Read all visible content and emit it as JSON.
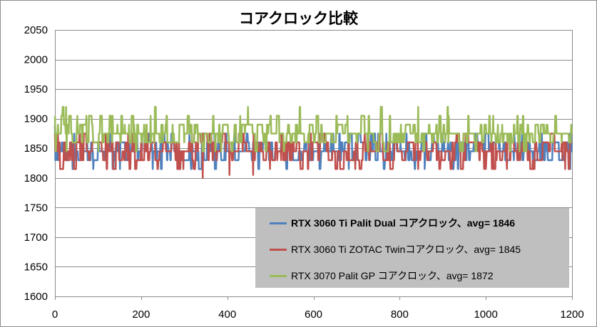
{
  "chart_data": {
    "type": "line",
    "title": "コアクロック比較",
    "xlabel": "",
    "ylabel": "",
    "xlim": [
      0,
      1200
    ],
    "ylim": [
      1600,
      2050
    ],
    "x_ticks": [
      0,
      200,
      400,
      600,
      800,
      1000,
      1200
    ],
    "y_ticks": [
      1600,
      1650,
      1700,
      1750,
      1800,
      1850,
      1900,
      1950,
      2000,
      2050
    ],
    "grid": true,
    "legend_position": "bottom-right",
    "series": [
      {
        "name": "RTX 3060 Ti Palit Dual コアクロック、avg= 1846",
        "color": "#4f81bd",
        "bold": true,
        "levels": [
          1815,
          1830,
          1845,
          1860,
          1875
        ],
        "weights": [
          0.06,
          0.24,
          0.33,
          0.27,
          0.1
        ],
        "start": 1890,
        "seed": 11
      },
      {
        "name": "RTX 3060 Ti ZOTAC Twinコアクロック、avg= 1845",
        "color": "#c0504d",
        "bold": false,
        "levels": [
          1815,
          1830,
          1845,
          1860,
          1875
        ],
        "weights": [
          0.07,
          0.24,
          0.31,
          0.28,
          0.1
        ],
        "start": 1875,
        "seed": 23,
        "dips": [
          [
            343,
            1800
          ],
          [
            405,
            1805
          ],
          [
            460,
            1805
          ]
        ]
      },
      {
        "name": "RTX 3070 Palit GP コアクロック、avg= 1872",
        "color": "#9bbb59",
        "bold": false,
        "levels": [
          1845,
          1860,
          1875,
          1890,
          1905,
          1920
        ],
        "weights": [
          0.05,
          0.28,
          0.42,
          0.15,
          0.08,
          0.02
        ],
        "start": 1905,
        "seed": 37
      }
    ]
  }
}
